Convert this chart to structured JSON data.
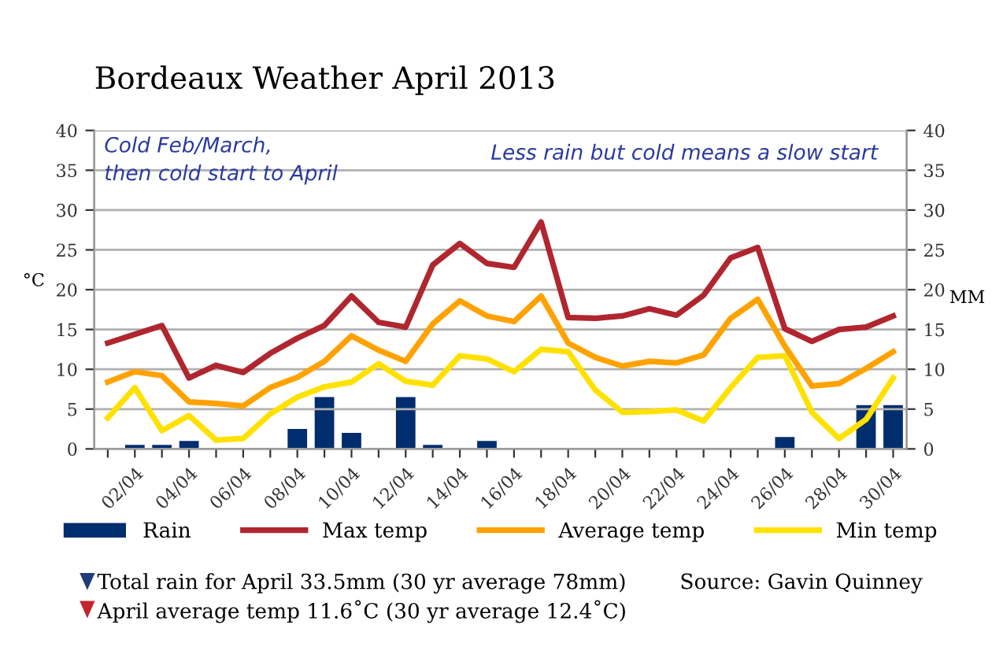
{
  "chart_data": {
    "type": "line",
    "title": "Bordeaux Weather April 2013",
    "categories": [
      null,
      "02/04",
      null,
      "04/04",
      null,
      "06/04",
      null,
      "08/04",
      null,
      "10/04",
      null,
      "12/04",
      null,
      "14/04",
      null,
      "16/04",
      null,
      "18/04",
      null,
      "20/04",
      null,
      "22/04",
      null,
      "24/04",
      null,
      "26/04",
      null,
      "28/04",
      null,
      "30/04"
    ],
    "series": [
      {
        "name": "Rain",
        "type": "bar",
        "axis": "y2",
        "color": "#002d6e",
        "values": [
          0,
          0.5,
          0.5,
          1.0,
          0,
          0,
          0,
          2.5,
          6.5,
          2.0,
          0,
          6.5,
          0.5,
          0,
          1.0,
          0,
          0,
          0,
          0,
          0,
          0,
          0,
          0,
          0,
          0,
          1.5,
          0,
          0,
          5.5,
          5.5
        ]
      },
      {
        "name": "Max temp",
        "color": "#b0262f",
        "values": [
          13.3,
          14.4,
          15.5,
          8.9,
          10.5,
          9.6,
          12.0,
          13.9,
          15.5,
          19.2,
          15.9,
          15.3,
          23.1,
          25.8,
          23.3,
          22.8,
          28.5,
          16.5,
          16.4,
          16.7,
          17.6,
          16.8,
          19.3,
          24.0,
          25.3,
          15.1,
          13.5,
          15.0,
          15.3,
          16.7
        ]
      },
      {
        "name": "Average temp",
        "color": "#ffa200",
        "values": [
          8.4,
          9.7,
          9.2,
          5.9,
          5.7,
          5.4,
          7.7,
          9.0,
          11.0,
          14.2,
          12.4,
          11.0,
          15.7,
          18.6,
          16.7,
          16.0,
          19.2,
          13.3,
          11.5,
          10.4,
          11.0,
          10.8,
          11.8,
          16.4,
          18.8,
          12.9,
          7.9,
          8.2,
          10.1,
          12.2
        ]
      },
      {
        "name": "Min temp",
        "color": "#ffe100",
        "values": [
          3.9,
          7.7,
          2.3,
          4.2,
          1.1,
          1.3,
          4.4,
          6.5,
          7.8,
          8.4,
          10.7,
          8.5,
          8.0,
          11.7,
          11.3,
          9.7,
          12.5,
          12.2,
          7.4,
          4.6,
          4.7,
          4.9,
          3.5,
          7.7,
          11.5,
          11.7,
          4.6,
          1.3,
          3.7,
          8.9
        ]
      }
    ],
    "ylabel": "°C",
    "y2label": "MM",
    "ylim": [
      0,
      40
    ],
    "yticks": [
      0,
      5,
      10,
      15,
      20,
      25,
      30,
      35,
      40
    ],
    "y2lim": [
      0,
      40
    ],
    "y2ticks": [
      0,
      5,
      10,
      15,
      20,
      25,
      30,
      35,
      40
    ],
    "grid": "y",
    "legend": "bottom",
    "marker": "none",
    "line_style": "solid",
    "annotations": [
      "Cold Feb/March,\nthen cold start to April",
      "Less rain but cold means a slow start",
      "Total rain for April 33.5mm (30 yr average 78mm)",
      "April average temp 11.6˚C (30 yr average 12.4˚C)",
      "Source: Gavin Quinney"
    ]
  }
}
